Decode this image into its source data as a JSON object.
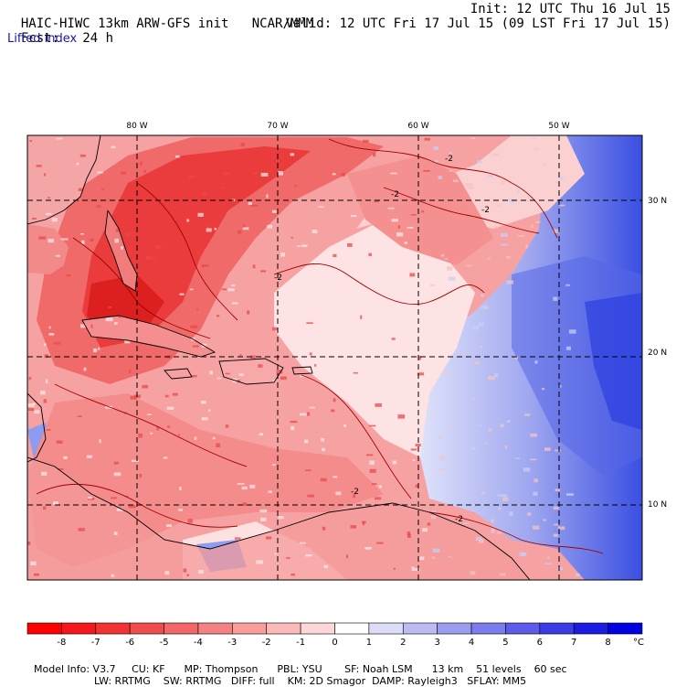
{
  "header": {
    "model_title": "HAIC-HIWC 13km ARW-GFS init",
    "org": "NCAR/MMM",
    "init_text": "Init: 12 UTC Thu 16 Jul 15",
    "fcst_label": "Fcst:",
    "fcst_value": "24 h",
    "valid_text": "Valid: 12 UTC Fri 17 Jul 15 (09 LST Fri 17 Jul 15)",
    "field_name": "Lifted index"
  },
  "map": {
    "lon_labels": [
      "80 W",
      "70 W",
      "60 W",
      "50 W"
    ],
    "lon_values": [
      -80,
      -70,
      -60,
      -50
    ],
    "lat_labels": [
      "30 N",
      "20 N",
      "10 N"
    ],
    "lat_values": [
      30,
      20,
      10
    ],
    "contour_label": "-2",
    "colors": {
      "strong_negative": "#ee1e26",
      "moderate_negative": "#f88c8c",
      "weak_negative": "#fcd0d0",
      "neutral": "#ffffff",
      "positive": "#8c8cf0",
      "strong_positive": "#2828e6",
      "contour": "#a00000",
      "coast": "#000000"
    }
  },
  "colorbar": {
    "labels": [
      "-8",
      "-7",
      "-6",
      "-5",
      "-4",
      "-3",
      "-2",
      "-1",
      "0",
      "1",
      "2",
      "3",
      "4",
      "5",
      "6",
      "7",
      "8"
    ],
    "unit": "°C",
    "colors": [
      "#ff0000",
      "#f5171c",
      "#f33333",
      "#f04c4c",
      "#f26767",
      "#f58282",
      "#f99d9d",
      "#fbbaba",
      "#fdd7d7",
      "#ffffff",
      "#dcdcf8",
      "#bcbcf3",
      "#9c9cef",
      "#7c7cec",
      "#5c5ce8",
      "#3c3ce4",
      "#1c1ce0",
      "#0000e0"
    ]
  },
  "model_info": {
    "line1": [
      "Model Info: V3.7",
      "CU: KF",
      "MP: Thompson",
      "PBL: YSU",
      "SF: Noah LSM",
      "13 km",
      "51 levels",
      "60 sec"
    ],
    "line2": [
      "LW: RRTMG",
      "SW: RRTMG",
      "DIFF: full",
      "KM: 2D Smagor",
      "DAMP: Rayleigh3",
      "SFLAY: MM5"
    ]
  }
}
